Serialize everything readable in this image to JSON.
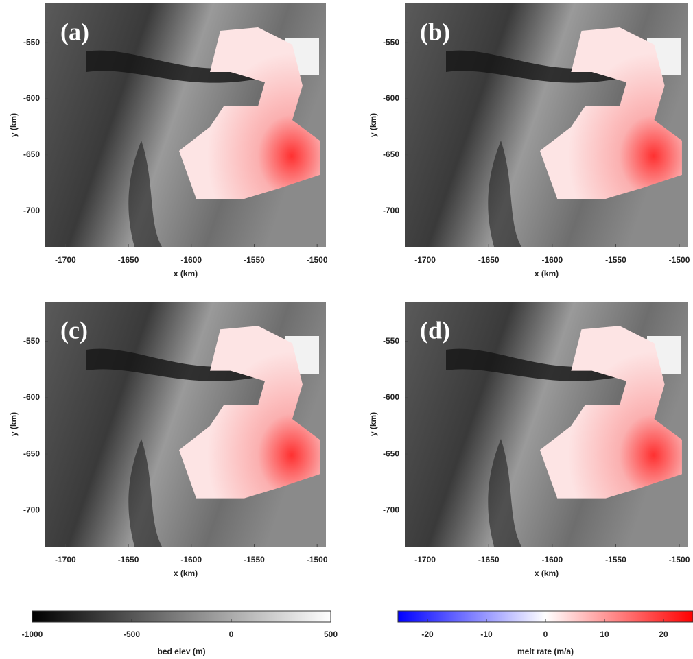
{
  "chart_data": [
    {
      "type": "map",
      "label": "(a)",
      "xlabel": "x (km)",
      "ylabel": "y (km)",
      "xlim": [
        -1716,
        -1493
      ],
      "ylim": [
        -732,
        -515
      ],
      "xticks": [
        -1700,
        -1650,
        -1600,
        -1550,
        -1500
      ],
      "yticks": [
        -700,
        -650,
        -600,
        -550
      ]
    },
    {
      "type": "map",
      "label": "(b)",
      "xlabel": "x (km)",
      "ylabel": "y (km)",
      "xlim": [
        -1716,
        -1493
      ],
      "ylim": [
        -732,
        -515
      ],
      "xticks": [
        -1700,
        -1650,
        -1600,
        -1550,
        -1500
      ],
      "yticks": [
        -700,
        -650,
        -600,
        -550
      ]
    },
    {
      "type": "map",
      "label": "(c)",
      "xlabel": "x (km)",
      "ylabel": "y (km)",
      "xlim": [
        -1716,
        -1493
      ],
      "ylim": [
        -732,
        -515
      ],
      "xticks": [
        -1700,
        -1650,
        -1600,
        -1550,
        -1500
      ],
      "yticks": [
        -700,
        -650,
        -600,
        -550
      ]
    },
    {
      "type": "map",
      "label": "(d)",
      "xlabel": "x (km)",
      "ylabel": "y (km)",
      "xlim": [
        -1716,
        -1493
      ],
      "ylim": [
        -732,
        -515
      ],
      "xticks": [
        -1700,
        -1650,
        -1600,
        -1550,
        -1500
      ],
      "yticks": [
        -700,
        -650,
        -600,
        -550
      ]
    },
    {
      "type": "colorbar",
      "label": "bed elev (m)",
      "xlim": [
        -1000,
        500
      ],
      "xticks": [
        -1000,
        -500,
        0,
        500
      ],
      "colors": [
        "#000000",
        "#ffffff"
      ]
    },
    {
      "type": "colorbar",
      "label": "melt rate (m/a)",
      "xlim": [
        -25,
        25
      ],
      "xticks": [
        -20,
        -10,
        0,
        10,
        20
      ],
      "colors": [
        "#0000ff",
        "#ffffff",
        "#ff0000"
      ]
    }
  ]
}
